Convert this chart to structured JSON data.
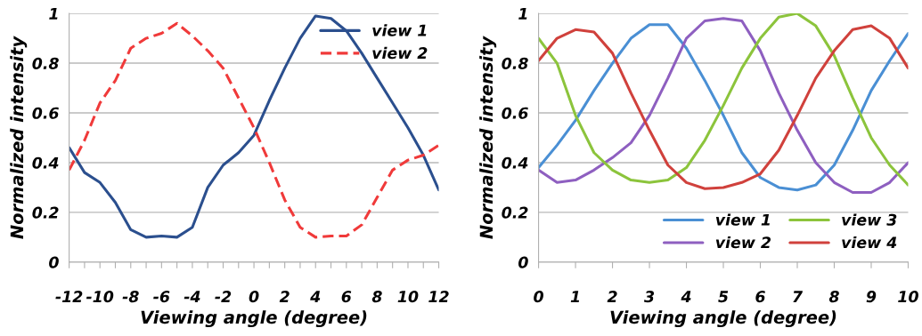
{
  "chart_data": [
    {
      "type": "line",
      "xlabel": "Viewing angle (degree)",
      "ylabel": "Normalized intensity",
      "x": [
        -12,
        -11,
        -10,
        -9,
        -8,
        -7,
        -6,
        -5,
        -4,
        -3,
        -2,
        -1,
        0,
        1,
        2,
        3,
        4,
        5,
        6,
        7,
        8,
        9,
        10,
        11,
        12
      ],
      "series": [
        {
          "name": "view 1",
          "color": "#2b4f8e",
          "line_style": "solid",
          "values": [
            0.46,
            0.36,
            0.32,
            0.24,
            0.13,
            0.1,
            0.105,
            0.1,
            0.14,
            0.3,
            0.39,
            0.44,
            0.51,
            0.65,
            0.78,
            0.9,
            0.99,
            0.98,
            0.93,
            0.84,
            0.74,
            0.64,
            0.54,
            0.43,
            0.29
          ]
        },
        {
          "name": "view 2",
          "color": "#f03a3a",
          "line_style": "dashed",
          "values": [
            0.37,
            0.49,
            0.64,
            0.73,
            0.86,
            0.9,
            0.92,
            0.96,
            0.91,
            0.85,
            0.78,
            0.66,
            0.54,
            0.4,
            0.25,
            0.14,
            0.1,
            0.105,
            0.105,
            0.15,
            0.26,
            0.37,
            0.41,
            0.43,
            0.47
          ]
        }
      ],
      "xlim": [
        -12,
        12
      ],
      "xticks": [
        -12,
        {
          "value": -11,
          "label": null
        },
        -10,
        {
          "value": -9,
          "label": null
        },
        -8,
        {
          "value": -7,
          "label": null
        },
        -6,
        {
          "value": -5,
          "label": null
        },
        -4,
        {
          "value": -3,
          "label": null
        },
        -2,
        {
          "value": -1,
          "label": null
        },
        0,
        {
          "value": 1,
          "label": null
        },
        2,
        {
          "value": 3,
          "label": null
        },
        4,
        {
          "value": 5,
          "label": null
        },
        6,
        {
          "value": 7,
          "label": null
        },
        8,
        {
          "value": 9,
          "label": null
        },
        10,
        {
          "value": 11,
          "label": null
        },
        12
      ],
      "ylim": [
        0,
        1
      ],
      "yticks": [
        0,
        0.2,
        0.4,
        0.6,
        0.8,
        1
      ],
      "grid": "y",
      "legend": "top right"
    },
    {
      "type": "line",
      "xlabel": "Viewing angle (degree)",
      "ylabel": "Normalized intensity",
      "x": [
        0,
        0.5,
        1,
        1.5,
        2,
        2.5,
        3,
        3.5,
        4,
        4.5,
        5,
        5.5,
        6,
        6.5,
        7,
        7.5,
        8,
        8.5,
        9,
        9.5,
        10
      ],
      "series": [
        {
          "name": "view 1",
          "color": "#4a8fd4",
          "values": [
            0.38,
            0.47,
            0.57,
            0.69,
            0.8,
            0.9,
            0.955,
            0.955,
            0.86,
            0.73,
            0.59,
            0.44,
            0.34,
            0.3,
            0.29,
            0.31,
            0.39,
            0.53,
            0.69,
            0.81,
            0.92
          ]
        },
        {
          "name": "view 2",
          "color": "#8e5fc0",
          "values": [
            0.37,
            0.32,
            0.33,
            0.37,
            0.42,
            0.48,
            0.59,
            0.74,
            0.9,
            0.97,
            0.98,
            0.97,
            0.85,
            0.68,
            0.53,
            0.4,
            0.32,
            0.28,
            0.28,
            0.32,
            0.4
          ]
        },
        {
          "name": "view 3",
          "color": "#8cc43c",
          "values": [
            0.9,
            0.8,
            0.59,
            0.44,
            0.37,
            0.33,
            0.32,
            0.33,
            0.38,
            0.49,
            0.63,
            0.78,
            0.9,
            0.985,
            1.0,
            0.95,
            0.83,
            0.66,
            0.5,
            0.39,
            0.31
          ]
        },
        {
          "name": "view 4",
          "color": "#d0413c",
          "values": [
            0.81,
            0.9,
            0.935,
            0.925,
            0.84,
            0.68,
            0.53,
            0.39,
            0.32,
            0.295,
            0.3,
            0.32,
            0.355,
            0.45,
            0.59,
            0.74,
            0.85,
            0.935,
            0.95,
            0.9,
            0.78
          ]
        }
      ],
      "xlim": [
        0,
        10
      ],
      "xticks": [
        0,
        1,
        2,
        3,
        4,
        5,
        6,
        7,
        8,
        9,
        10
      ],
      "ylim": [
        0,
        1
      ],
      "yticks": [
        0,
        0.2,
        0.4,
        0.6,
        0.8,
        1
      ],
      "grid": "y",
      "legend": "bottom right"
    }
  ]
}
